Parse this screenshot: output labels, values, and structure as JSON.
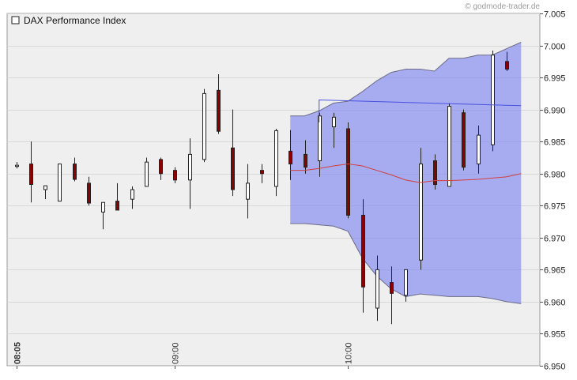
{
  "watermark": "© godmode-trader.de",
  "chart_data": {
    "type": "candlestick",
    "legend": {
      "label": "DAX Performance Index",
      "position": "top-left"
    },
    "y_axis": {
      "position": "right",
      "range": [
        6.95,
        7.005
      ],
      "ticks": [
        "6.950",
        "6.955",
        "6.960",
        "6.965",
        "6.970",
        "6.975",
        "6.980",
        "6.985",
        "6.990",
        "6.995",
        "7.000",
        "7.005"
      ]
    },
    "x_axis": {
      "labels": [
        {
          "label": "08:05",
          "index": 0,
          "bold": true
        },
        {
          "label": "09:00",
          "index": 11
        },
        {
          "label": "10:00",
          "index": 23
        }
      ]
    },
    "grid": true,
    "candles": [
      {
        "o": 6.9813,
        "h": 6.9818,
        "l": 6.9808,
        "c": 6.9813
      },
      {
        "o": 6.9815,
        "h": 6.985,
        "l": 6.9755,
        "c": 6.9783
      },
      {
        "o": 6.9775,
        "h": 6.978,
        "l": 6.976,
        "c": 6.9781
      },
      {
        "o": 6.9757,
        "h": 6.9815,
        "l": 6.9757,
        "c": 6.9815
      },
      {
        "o": 6.9815,
        "h": 6.9825,
        "l": 6.9788,
        "c": 6.9791
      },
      {
        "o": 6.9785,
        "h": 6.9795,
        "l": 6.975,
        "c": 6.9754
      },
      {
        "o": 6.974,
        "h": 6.9755,
        "l": 6.9713,
        "c": 6.9755
      },
      {
        "o": 6.9757,
        "h": 6.9785,
        "l": 6.9743,
        "c": 6.9743
      },
      {
        "o": 6.976,
        "h": 6.978,
        "l": 6.9745,
        "c": 6.9775
      },
      {
        "o": 6.978,
        "h": 6.9825,
        "l": 6.978,
        "c": 6.9818
      },
      {
        "o": 6.9822,
        "h": 6.9825,
        "l": 6.979,
        "c": 6.98
      },
      {
        "o": 6.9805,
        "h": 6.981,
        "l": 6.9785,
        "c": 6.979
      },
      {
        "o": 6.979,
        "h": 6.9855,
        "l": 6.9745,
        "c": 6.983
      },
      {
        "o": 6.9822,
        "h": 6.9932,
        "l": 6.9818,
        "c": 6.9925
      },
      {
        "o": 6.993,
        "h": 6.9955,
        "l": 6.9862,
        "c": 6.9866
      },
      {
        "o": 6.984,
        "h": 6.99,
        "l": 6.9765,
        "c": 6.9775
      },
      {
        "o": 6.976,
        "h": 6.9815,
        "l": 6.973,
        "c": 6.9785
      },
      {
        "o": 6.9805,
        "h": 6.9815,
        "l": 6.9785,
        "c": 6.98
      },
      {
        "o": 6.978,
        "h": 6.987,
        "l": 6.9765,
        "c": 6.9867
      },
      {
        "o": 6.9835,
        "h": 6.9868,
        "l": 6.979,
        "c": 6.9815
      },
      {
        "o": 6.983,
        "h": 6.9852,
        "l": 6.98,
        "c": 6.981
      },
      {
        "o": 6.982,
        "h": 6.9895,
        "l": 6.9795,
        "c": 6.989
      },
      {
        "o": 6.9873,
        "h": 6.9895,
        "l": 6.984,
        "c": 6.9888
      },
      {
        "o": 6.987,
        "h": 6.988,
        "l": 6.973,
        "c": 6.9735
      },
      {
        "o": 6.9735,
        "h": 6.976,
        "l": 6.9583,
        "c": 6.9623
      },
      {
        "o": 6.959,
        "h": 6.9672,
        "l": 6.957,
        "c": 6.965
      },
      {
        "o": 6.963,
        "h": 6.9655,
        "l": 6.9565,
        "c": 6.9613
      },
      {
        "o": 6.961,
        "h": 6.965,
        "l": 6.96,
        "c": 6.965
      },
      {
        "o": 6.9665,
        "h": 6.984,
        "l": 6.965,
        "c": 6.9815
      },
      {
        "o": 6.982,
        "h": 6.983,
        "l": 6.9775,
        "c": 6.9783
      },
      {
        "o": 6.978,
        "h": 6.991,
        "l": 6.978,
        "c": 6.9905
      },
      {
        "o": 6.9895,
        "h": 6.99,
        "l": 6.9805,
        "c": 6.981
      },
      {
        "o": 6.9815,
        "h": 6.9875,
        "l": 6.98,
        "c": 6.986
      },
      {
        "o": 6.9845,
        "h": 6.9992,
        "l": 6.9835,
        "c": 6.9985
      },
      {
        "o": 6.9975,
        "h": 6.999,
        "l": 6.996,
        "c": 6.9963
      }
    ],
    "channel": {
      "start_index": 19,
      "x": [
        19,
        20,
        21,
        22,
        23,
        24,
        25,
        26,
        27,
        28,
        29,
        30,
        31,
        32,
        33,
        34,
        35
      ],
      "upper": [
        6.989,
        6.989,
        6.9898,
        6.991,
        6.9913,
        6.9928,
        6.9945,
        6.9958,
        6.9963,
        6.9963,
        6.996,
        6.998,
        6.998,
        6.9985,
        6.9985,
        6.9995,
        7.0005
      ],
      "lower": [
        6.9722,
        6.9722,
        6.972,
        6.9718,
        6.971,
        6.9668,
        6.964,
        6.962,
        6.9608,
        6.9612,
        6.961,
        6.9608,
        6.9608,
        6.9608,
        6.9605,
        6.96,
        6.9597
      ],
      "fill": "#7f86f0",
      "edge": "#6b6b88"
    },
    "midline": {
      "color": "#d04040",
      "x": [
        19,
        20,
        21,
        22,
        23,
        24,
        25,
        26,
        27,
        28,
        29,
        30,
        31,
        32,
        33,
        34,
        35
      ],
      "y": [
        6.9805,
        6.9805,
        6.9808,
        6.9812,
        6.9815,
        6.9812,
        6.9805,
        6.9798,
        6.979,
        6.9786,
        6.9789,
        6.9789,
        6.979,
        6.9791,
        6.9793,
        6.9795,
        6.98
      ]
    },
    "trendline": {
      "color": "#4a52e0",
      "from": {
        "x": 21,
        "y": 6.9915
      },
      "to": {
        "x": 35,
        "y": 6.9906
      },
      "start_drop": {
        "x": 21,
        "y": 6.988
      }
    },
    "colors": {
      "bull_fill": "#ffffff",
      "bear_fill": "#8b0000",
      "candle_stroke": "#222222",
      "plot_bg": "#efefef",
      "grid": "#d8d8d8"
    }
  }
}
